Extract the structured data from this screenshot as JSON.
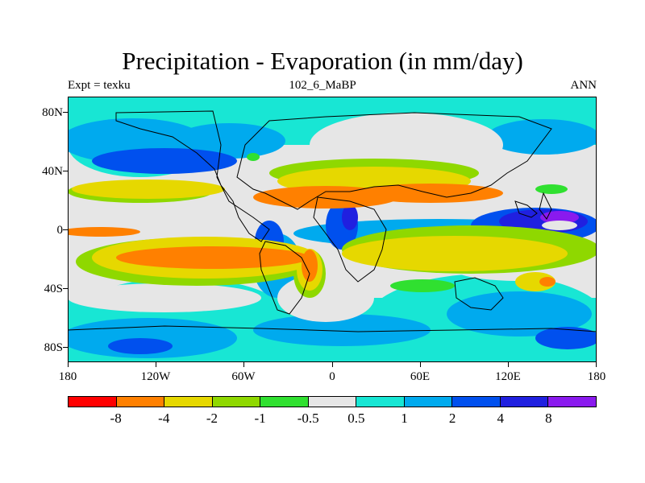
{
  "title": "Precipitation - Evaporation (in mm/day)",
  "subtitle_left": "Expt = texku",
  "subtitle_center": "102_6_MaBP",
  "subtitle_right": "ANN",
  "lat_labels": [
    "80N",
    "40N",
    "0",
    "40S",
    "80S"
  ],
  "lon_labels": [
    "180",
    "120W",
    "60W",
    "0",
    "60E",
    "120E",
    "180"
  ],
  "colorbar": {
    "colors": [
      "#ff0000",
      "#ff8000",
      "#e6d800",
      "#8fd800",
      "#30e030",
      "#e6e6e6",
      "#18e6d4",
      "#00aaee",
      "#0050ee",
      "#2020e0",
      "#8a1aee"
    ],
    "labels": [
      "-8",
      "-4",
      "-2",
      "-1",
      "-0.5",
      "0.5",
      "1",
      "2",
      "4",
      "8"
    ]
  },
  "chart_data": {
    "type": "heatmap",
    "title": "Precipitation - Evaporation (in mm/day)",
    "variable": "P-E",
    "units": "mm/day",
    "experiment": "texku",
    "period": "102_6_MaBP",
    "season": "ANN",
    "x_range_deg": [
      -180,
      180
    ],
    "y_range_deg": [
      -90,
      90
    ],
    "levels": [
      -8,
      -4,
      -2,
      -1,
      -0.5,
      0.5,
      1,
      2,
      4,
      8
    ]
  }
}
